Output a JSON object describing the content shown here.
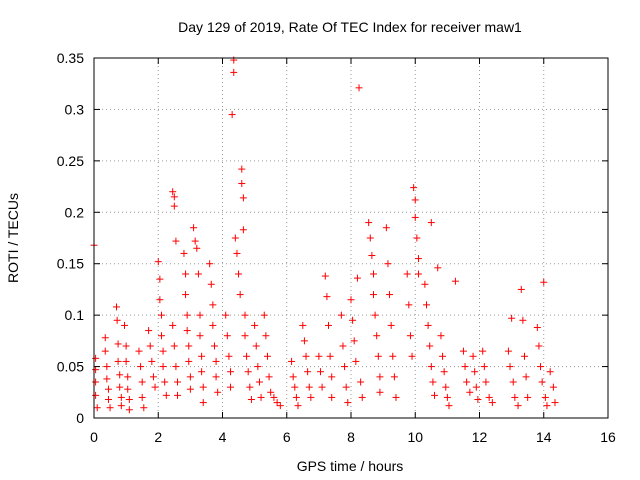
{
  "chart_data": {
    "type": "scatter",
    "title": "Day 129 of 2019, Rate Of TEC Index for receiver maw1",
    "xlabel": "GPS time / hours",
    "ylabel": "ROTI / TECUs",
    "xlim": [
      0,
      16
    ],
    "ylim": [
      0,
      0.35
    ],
    "xticks": [
      0,
      2,
      4,
      6,
      8,
      10,
      12,
      14,
      16
    ],
    "yticks": [
      0,
      0.05,
      0.1,
      0.15,
      0.2,
      0.25,
      0.3,
      0.35
    ],
    "xtick_labels": [
      "0",
      "2",
      "4",
      "6",
      "8",
      "10",
      "12",
      "14",
      "16"
    ],
    "ytick_labels": [
      "0",
      "0.05",
      "0.1",
      "0.15",
      "0.2",
      "0.25",
      "0.3",
      "0.35"
    ],
    "grid": true,
    "marker": "plus",
    "marker_color": "#ff0000",
    "series": [
      {
        "name": "ROTI",
        "points": [
          [
            0.0,
            0.168
          ],
          [
            0.05,
            0.058
          ],
          [
            0.05,
            0.047
          ],
          [
            0.05,
            0.035
          ],
          [
            0.05,
            0.022
          ],
          [
            0.1,
            0.01
          ],
          [
            0.35,
            0.078
          ],
          [
            0.35,
            0.065
          ],
          [
            0.4,
            0.05
          ],
          [
            0.4,
            0.038
          ],
          [
            0.45,
            0.028
          ],
          [
            0.45,
            0.018
          ],
          [
            0.5,
            0.01
          ],
          [
            0.7,
            0.108
          ],
          [
            0.72,
            0.095
          ],
          [
            0.75,
            0.072
          ],
          [
            0.75,
            0.055
          ],
          [
            0.8,
            0.042
          ],
          [
            0.8,
            0.03
          ],
          [
            0.85,
            0.02
          ],
          [
            0.85,
            0.012
          ],
          [
            0.95,
            0.09
          ],
          [
            1.0,
            0.07
          ],
          [
            1.0,
            0.055
          ],
          [
            1.05,
            0.04
          ],
          [
            1.05,
            0.028
          ],
          [
            1.1,
            0.018
          ],
          [
            1.1,
            0.008
          ],
          [
            1.4,
            0.065
          ],
          [
            1.45,
            0.05
          ],
          [
            1.5,
            0.035
          ],
          [
            1.5,
            0.02
          ],
          [
            1.55,
            0.01
          ],
          [
            1.7,
            0.085
          ],
          [
            1.75,
            0.07
          ],
          [
            1.8,
            0.055
          ],
          [
            1.85,
            0.04
          ],
          [
            1.9,
            0.03
          ],
          [
            2.0,
            0.152
          ],
          [
            2.05,
            0.135
          ],
          [
            2.05,
            0.115
          ],
          [
            2.1,
            0.1
          ],
          [
            2.1,
            0.08
          ],
          [
            2.15,
            0.065
          ],
          [
            2.15,
            0.05
          ],
          [
            2.2,
            0.035
          ],
          [
            2.25,
            0.022
          ],
          [
            2.45,
            0.22
          ],
          [
            2.5,
            0.215
          ],
          [
            2.5,
            0.206
          ],
          [
            2.55,
            0.172
          ],
          [
            2.45,
            0.09
          ],
          [
            2.5,
            0.07
          ],
          [
            2.55,
            0.05
          ],
          [
            2.6,
            0.035
          ],
          [
            2.6,
            0.022
          ],
          [
            2.8,
            0.16
          ],
          [
            2.85,
            0.14
          ],
          [
            2.85,
            0.12
          ],
          [
            2.9,
            0.1
          ],
          [
            2.9,
            0.085
          ],
          [
            2.95,
            0.07
          ],
          [
            2.95,
            0.055
          ],
          [
            3.0,
            0.04
          ],
          [
            3.0,
            0.028
          ],
          [
            3.1,
            0.185
          ],
          [
            3.15,
            0.172
          ],
          [
            3.2,
            0.165
          ],
          [
            3.25,
            0.14
          ],
          [
            3.3,
            0.1
          ],
          [
            3.3,
            0.08
          ],
          [
            3.35,
            0.06
          ],
          [
            3.35,
            0.045
          ],
          [
            3.4,
            0.03
          ],
          [
            3.4,
            0.015
          ],
          [
            3.6,
            0.15
          ],
          [
            3.65,
            0.13
          ],
          [
            3.7,
            0.11
          ],
          [
            3.7,
            0.09
          ],
          [
            3.75,
            0.07
          ],
          [
            3.8,
            0.055
          ],
          [
            3.8,
            0.04
          ],
          [
            3.85,
            0.025
          ],
          [
            4.1,
            0.1
          ],
          [
            4.15,
            0.08
          ],
          [
            4.2,
            0.06
          ],
          [
            4.25,
            0.045
          ],
          [
            4.25,
            0.03
          ],
          [
            4.3,
            0.295
          ],
          [
            4.35,
            0.348
          ],
          [
            4.35,
            0.336
          ],
          [
            4.4,
            0.175
          ],
          [
            4.45,
            0.16
          ],
          [
            4.5,
            0.14
          ],
          [
            4.55,
            0.12
          ],
          [
            4.6,
            0.242
          ],
          [
            4.6,
            0.228
          ],
          [
            4.65,
            0.214
          ],
          [
            4.65,
            0.183
          ],
          [
            4.7,
            0.1
          ],
          [
            4.7,
            0.08
          ],
          [
            4.75,
            0.06
          ],
          [
            4.8,
            0.045
          ],
          [
            4.85,
            0.03
          ],
          [
            4.9,
            0.018
          ],
          [
            5.0,
            0.09
          ],
          [
            5.05,
            0.07
          ],
          [
            5.1,
            0.05
          ],
          [
            5.15,
            0.035
          ],
          [
            5.2,
            0.02
          ],
          [
            5.3,
            0.1
          ],
          [
            5.35,
            0.08
          ],
          [
            5.4,
            0.06
          ],
          [
            5.45,
            0.04
          ],
          [
            5.5,
            0.025
          ],
          [
            5.6,
            0.02
          ],
          [
            5.7,
            0.015
          ],
          [
            5.8,
            0.012
          ],
          [
            6.15,
            0.055
          ],
          [
            6.2,
            0.04
          ],
          [
            6.25,
            0.03
          ],
          [
            6.3,
            0.02
          ],
          [
            6.35,
            0.012
          ],
          [
            6.5,
            0.09
          ],
          [
            6.55,
            0.075
          ],
          [
            6.6,
            0.06
          ],
          [
            6.65,
            0.045
          ],
          [
            6.7,
            0.03
          ],
          [
            6.75,
            0.02
          ],
          [
            7.0,
            0.06
          ],
          [
            7.05,
            0.045
          ],
          [
            7.1,
            0.03
          ],
          [
            7.2,
            0.138
          ],
          [
            7.25,
            0.118
          ],
          [
            7.3,
            0.09
          ],
          [
            7.35,
            0.06
          ],
          [
            7.4,
            0.04
          ],
          [
            7.4,
            0.02
          ],
          [
            7.7,
            0.1
          ],
          [
            7.75,
            0.07
          ],
          [
            7.8,
            0.05
          ],
          [
            7.85,
            0.03
          ],
          [
            7.9,
            0.015
          ],
          [
            8.0,
            0.115
          ],
          [
            8.05,
            0.095
          ],
          [
            8.1,
            0.075
          ],
          [
            8.15,
            0.055
          ],
          [
            8.2,
            0.136
          ],
          [
            8.25,
            0.321
          ],
          [
            8.3,
            0.035
          ],
          [
            8.35,
            0.02
          ],
          [
            8.55,
            0.19
          ],
          [
            8.6,
            0.175
          ],
          [
            8.65,
            0.158
          ],
          [
            8.7,
            0.14
          ],
          [
            8.7,
            0.12
          ],
          [
            8.75,
            0.1
          ],
          [
            8.8,
            0.08
          ],
          [
            8.85,
            0.06
          ],
          [
            8.9,
            0.04
          ],
          [
            8.9,
            0.025
          ],
          [
            9.1,
            0.185
          ],
          [
            9.15,
            0.15
          ],
          [
            9.2,
            0.12
          ],
          [
            9.25,
            0.09
          ],
          [
            9.3,
            0.06
          ],
          [
            9.35,
            0.04
          ],
          [
            9.4,
            0.02
          ],
          [
            9.75,
            0.14
          ],
          [
            9.8,
            0.11
          ],
          [
            9.85,
            0.08
          ],
          [
            9.9,
            0.06
          ],
          [
            9.95,
            0.224
          ],
          [
            10.0,
            0.212
          ],
          [
            10.0,
            0.195
          ],
          [
            10.05,
            0.175
          ],
          [
            10.1,
            0.155
          ],
          [
            10.1,
            0.14
          ],
          [
            10.3,
            0.13
          ],
          [
            10.35,
            0.11
          ],
          [
            10.4,
            0.09
          ],
          [
            10.45,
            0.07
          ],
          [
            10.5,
            0.19
          ],
          [
            10.5,
            0.05
          ],
          [
            10.55,
            0.035
          ],
          [
            10.6,
            0.022
          ],
          [
            10.7,
            0.146
          ],
          [
            10.8,
            0.08
          ],
          [
            10.85,
            0.06
          ],
          [
            10.9,
            0.045
          ],
          [
            10.95,
            0.03
          ],
          [
            11.0,
            0.02
          ],
          [
            11.05,
            0.012
          ],
          [
            11.25,
            0.133
          ],
          [
            11.5,
            0.065
          ],
          [
            11.55,
            0.05
          ],
          [
            11.6,
            0.035
          ],
          [
            11.7,
            0.025
          ],
          [
            11.8,
            0.06
          ],
          [
            11.85,
            0.045
          ],
          [
            11.9,
            0.03
          ],
          [
            11.95,
            0.018
          ],
          [
            12.1,
            0.065
          ],
          [
            12.15,
            0.05
          ],
          [
            12.2,
            0.035
          ],
          [
            12.3,
            0.02
          ],
          [
            12.4,
            0.015
          ],
          [
            12.9,
            0.065
          ],
          [
            12.95,
            0.05
          ],
          [
            13.0,
            0.097
          ],
          [
            13.05,
            0.035
          ],
          [
            13.1,
            0.02
          ],
          [
            13.2,
            0.012
          ],
          [
            13.3,
            0.125
          ],
          [
            13.35,
            0.095
          ],
          [
            13.4,
            0.06
          ],
          [
            13.45,
            0.04
          ],
          [
            13.5,
            0.02
          ],
          [
            13.8,
            0.088
          ],
          [
            13.85,
            0.07
          ],
          [
            13.9,
            0.05
          ],
          [
            13.95,
            0.035
          ],
          [
            14.0,
            0.132
          ],
          [
            14.05,
            0.02
          ],
          [
            14.1,
            0.012
          ],
          [
            14.2,
            0.045
          ],
          [
            14.3,
            0.03
          ],
          [
            14.35,
            0.015
          ]
        ]
      }
    ]
  }
}
